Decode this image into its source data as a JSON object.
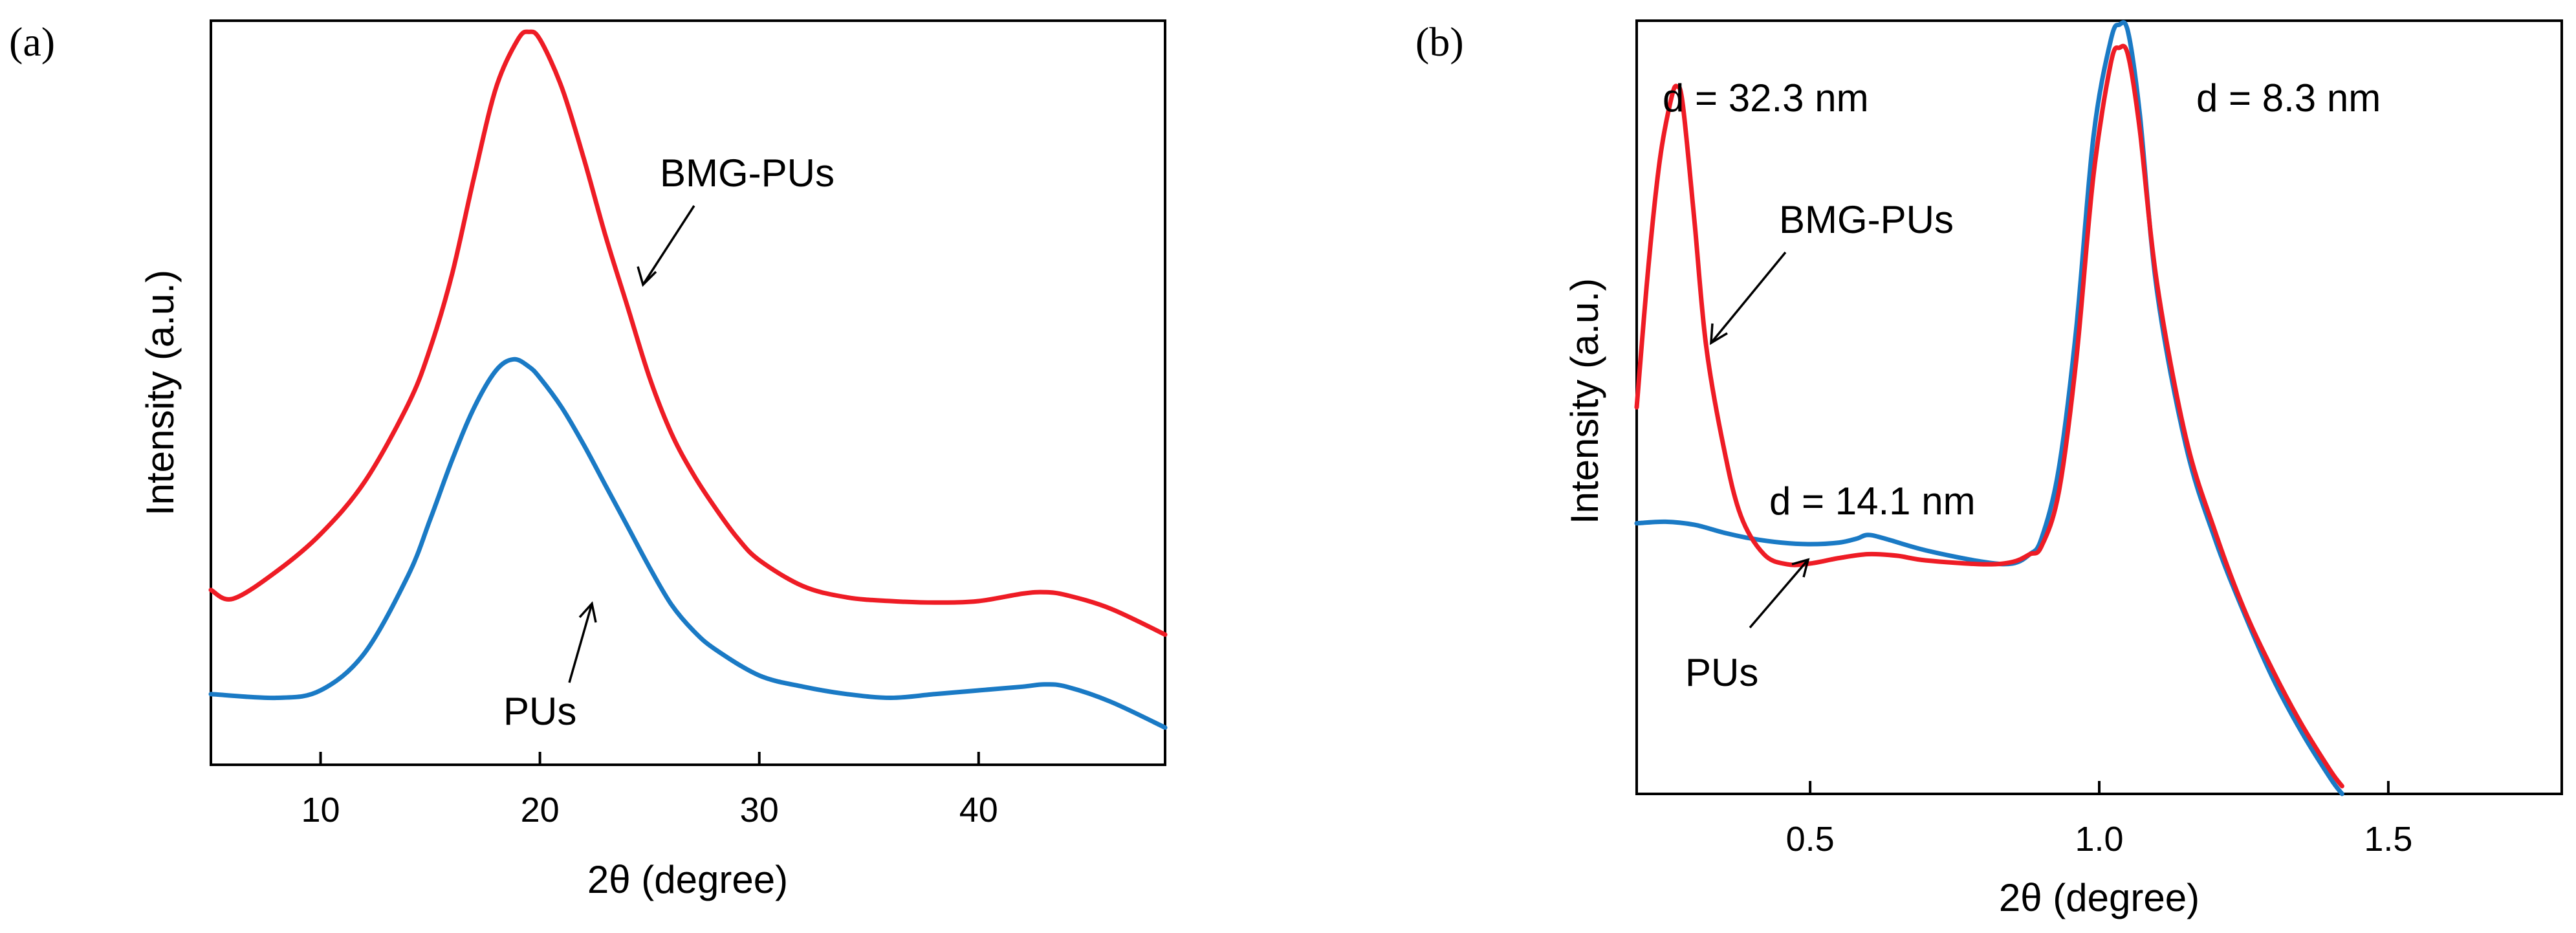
{
  "chart_data": [
    {
      "panel": "(a)",
      "type": "line",
      "xlabel": "2θ (degree)",
      "ylabel": "Intensity (a.u.)",
      "xlim": [
        5,
        48.5
      ],
      "ylim": [
        0,
        1
      ],
      "xticks": [
        10,
        20,
        30,
        40
      ],
      "xtick_labels": [
        "10",
        "20",
        "30",
        "40"
      ],
      "yticks_shown": false,
      "colors": {
        "BMG-PUs": "#ee1c25",
        "PUs": "#1a7ac5"
      },
      "series": [
        {
          "name": "BMG-PUs",
          "x": [
            5,
            6,
            8,
            10,
            12,
            14,
            15,
            16,
            17,
            18,
            19,
            19.5,
            20,
            21,
            22,
            23,
            24,
            25,
            26,
            27,
            28,
            29,
            30,
            32,
            34,
            36,
            38,
            40,
            42,
            43,
            44,
            46,
            48.5
          ],
          "y": [
            0.235,
            0.223,
            0.26,
            0.31,
            0.38,
            0.485,
            0.56,
            0.66,
            0.79,
            0.91,
            0.975,
            0.985,
            0.975,
            0.91,
            0.815,
            0.71,
            0.615,
            0.52,
            0.445,
            0.39,
            0.345,
            0.305,
            0.275,
            0.24,
            0.225,
            0.22,
            0.218,
            0.22,
            0.23,
            0.232,
            0.228,
            0.21,
            0.175
          ]
        },
        {
          "name": "PUs",
          "x": [
            5,
            8,
            10,
            12,
            14,
            15,
            16,
            17,
            18,
            18.8,
            19.5,
            20,
            21,
            22,
            23,
            24,
            25,
            26,
            27,
            28,
            30,
            32,
            34,
            36,
            38,
            40,
            42,
            43,
            44,
            46,
            48.5
          ],
          "y": [
            0.095,
            0.09,
            0.1,
            0.15,
            0.255,
            0.33,
            0.41,
            0.48,
            0.53,
            0.545,
            0.535,
            0.52,
            0.48,
            0.43,
            0.375,
            0.32,
            0.265,
            0.215,
            0.18,
            0.155,
            0.12,
            0.105,
            0.095,
            0.09,
            0.095,
            0.1,
            0.105,
            0.108,
            0.105,
            0.085,
            0.05
          ]
        }
      ],
      "annotations": [
        {
          "text": "BMG-PUs",
          "target": "BMG-PUs"
        },
        {
          "text": "PUs",
          "target": "PUs"
        }
      ]
    },
    {
      "panel": "(b)",
      "type": "line",
      "xlabel": "2θ (degree)",
      "ylabel": "Intensity (a.u.)",
      "xlim": [
        0.2,
        1.8
      ],
      "ylim": [
        0,
        1
      ],
      "xticks": [
        0.5,
        1.0,
        1.5
      ],
      "xtick_labels": [
        "0.5",
        "1.0",
        "1.5"
      ],
      "yticks_shown": false,
      "colors": {
        "BMG-PUs": "#ee1c25",
        "PUs": "#1a7ac5"
      },
      "series": [
        {
          "name": "PUs",
          "x": [
            0.2,
            0.25,
            0.3,
            0.35,
            0.4,
            0.45,
            0.5,
            0.55,
            0.58,
            0.6,
            0.63,
            0.7,
            0.8,
            0.85,
            0.88,
            0.9,
            0.93,
            0.96,
            0.99,
            1.02,
            1.035,
            1.05,
            1.07,
            1.1,
            1.15,
            1.2,
            1.25,
            1.3,
            1.35,
            1.4,
            1.42
          ],
          "y": [
            0.35,
            0.352,
            0.348,
            0.338,
            0.33,
            0.325,
            0.323,
            0.325,
            0.33,
            0.335,
            0.33,
            0.315,
            0.3,
            0.298,
            0.31,
            0.33,
            0.42,
            0.6,
            0.85,
            0.975,
            0.995,
            0.985,
            0.88,
            0.65,
            0.45,
            0.33,
            0.235,
            0.15,
            0.08,
            0.02,
            0.0
          ]
        },
        {
          "name": "BMG-PUs",
          "x": [
            0.2,
            0.22,
            0.24,
            0.26,
            0.27,
            0.28,
            0.3,
            0.32,
            0.35,
            0.38,
            0.42,
            0.46,
            0.5,
            0.55,
            0.6,
            0.65,
            0.7,
            0.8,
            0.85,
            0.88,
            0.9,
            0.93,
            0.96,
            0.99,
            1.02,
            1.035,
            1.05,
            1.07,
            1.1,
            1.15,
            1.2,
            1.25,
            1.3,
            1.35,
            1.4,
            1.42
          ],
          "y": [
            0.5,
            0.68,
            0.82,
            0.9,
            0.915,
            0.89,
            0.74,
            0.58,
            0.45,
            0.36,
            0.31,
            0.297,
            0.298,
            0.305,
            0.31,
            0.308,
            0.302,
            0.297,
            0.3,
            0.31,
            0.32,
            0.39,
            0.56,
            0.8,
            0.945,
            0.965,
            0.955,
            0.86,
            0.66,
            0.46,
            0.34,
            0.24,
            0.16,
            0.09,
            0.03,
            0.01
          ]
        }
      ],
      "annotations": [
        {
          "text": "d = 32.3 nm"
        },
        {
          "text": "d = 8.3 nm"
        },
        {
          "text": "d = 14.1 nm"
        },
        {
          "text": "BMG-PUs",
          "target": "BMG-PUs"
        },
        {
          "text": "PUs",
          "target": "PUs"
        }
      ]
    }
  ]
}
